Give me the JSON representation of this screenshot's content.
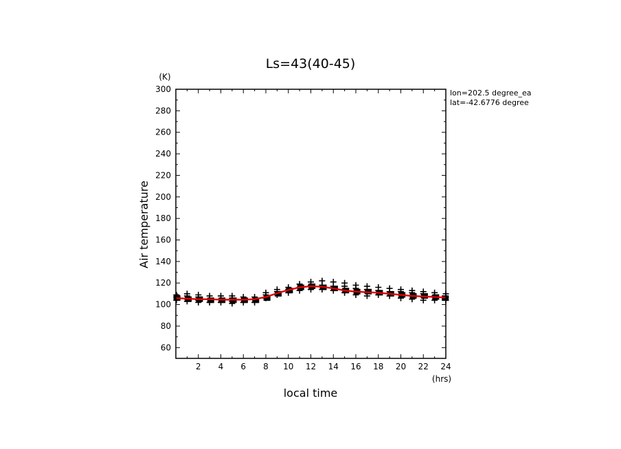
{
  "chart_data": {
    "type": "scatter",
    "title": "Ls=43(40-45)",
    "ylabel": "Air temperature",
    "yunit": "(K)",
    "xlabel": "local time",
    "xunit": "(hrs)",
    "xlim": [
      0,
      24
    ],
    "ylim": [
      50,
      300
    ],
    "xticks": [
      2,
      4,
      6,
      8,
      10,
      12,
      14,
      16,
      18,
      20,
      22,
      24
    ],
    "yticks": [
      60,
      80,
      100,
      120,
      140,
      160,
      180,
      200,
      220,
      240,
      260,
      280,
      300
    ],
    "grid": false,
    "annotations": [
      "lon=202.5 degree_ea",
      "lat=-42.6776 degree"
    ],
    "colors": {
      "fit_line": "#e00000",
      "points": "#000000"
    },
    "series": [
      {
        "type": "scatter",
        "marker": "plus",
        "x": [
          0.05,
          0.05,
          0.05,
          1,
          1,
          1,
          1,
          2,
          2,
          2,
          2,
          3,
          3,
          3,
          4,
          4,
          4,
          5,
          5,
          5,
          5,
          6,
          6,
          6,
          7,
          7,
          7,
          8,
          8,
          8,
          9,
          9,
          9,
          10,
          10,
          10,
          11,
          11,
          11,
          12,
          12,
          12,
          13,
          13,
          13,
          14,
          14,
          14,
          15,
          15,
          15,
          15,
          16,
          16,
          16,
          16,
          17,
          17,
          17,
          17,
          18,
          18,
          18,
          19,
          19,
          19,
          20,
          20,
          20,
          20,
          21,
          21,
          21,
          21,
          22,
          22,
          22,
          22,
          23,
          23,
          23,
          24,
          24,
          24
        ],
        "y": [
          109,
          107,
          104,
          110,
          108,
          105,
          103,
          109,
          107,
          104,
          102,
          108,
          105,
          102,
          108,
          105,
          102,
          108,
          106,
          103,
          101,
          107,
          105,
          102,
          107,
          105,
          102,
          111,
          109,
          106,
          114,
          112,
          109,
          116,
          114,
          111,
          119,
          116,
          113,
          121,
          118,
          114,
          122,
          118,
          114,
          121,
          117,
          113,
          120,
          117,
          114,
          111,
          118,
          115,
          112,
          109,
          117,
          114,
          111,
          108,
          116,
          113,
          109,
          115,
          112,
          108,
          114,
          112,
          109,
          106,
          113,
          111,
          108,
          105,
          112,
          110,
          107,
          104,
          111,
          108,
          104,
          110,
          107,
          104
        ]
      },
      {
        "type": "scatter",
        "marker": "filled-square",
        "x": [
          0.1,
          1.1,
          2.1,
          3.1,
          4.1,
          5.1,
          6.1,
          7.1,
          8.1,
          9.1,
          10.1,
          11.1,
          12.1,
          13.1,
          14.1,
          15.1,
          16.1,
          17.1,
          18.1,
          19.1,
          20.1,
          21.1,
          22.1,
          23.1,
          23.95
        ],
        "y": [
          106,
          105,
          105,
          104,
          104,
          104,
          104,
          104,
          106,
          110,
          113,
          116,
          117,
          116,
          115,
          113,
          112,
          112,
          111,
          110,
          109,
          108,
          108,
          107,
          106
        ]
      },
      {
        "type": "line",
        "x": [
          0,
          1,
          2,
          3,
          4,
          5,
          6,
          7,
          8,
          9,
          10,
          11,
          12,
          13,
          14,
          15,
          16,
          17,
          18,
          19,
          20,
          21,
          22,
          23,
          24
        ],
        "y": [
          106,
          105.5,
          105,
          105,
          104.5,
          104.5,
          104.5,
          105,
          107,
          110.5,
          113.5,
          116,
          117,
          116.5,
          115,
          113,
          112,
          111.5,
          111,
          110,
          109,
          108,
          107.5,
          107,
          106.5
        ]
      }
    ]
  }
}
